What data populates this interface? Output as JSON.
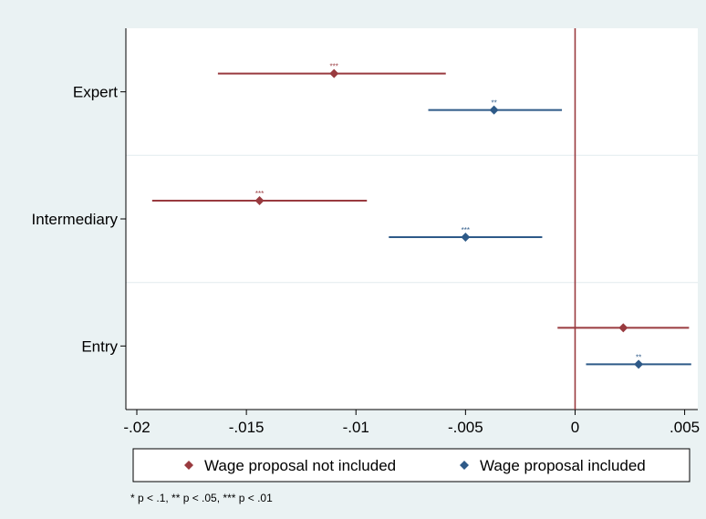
{
  "chart_data": {
    "type": "coefficient-plot",
    "orientation": "horizontal",
    "categories": [
      "Expert",
      "Intermediary",
      "Entry"
    ],
    "xlim": [
      -0.0205,
      0.0056
    ],
    "xticks": [
      -0.02,
      -0.015,
      -0.01,
      -0.005,
      0,
      0.005
    ],
    "xtick_labels": [
      "-.02",
      "-.015",
      "-.01",
      "-.005",
      "0",
      ".005"
    ],
    "reference_line_x": 0,
    "grid": "horizontal separators between categories",
    "legend_position": "bottom",
    "series": [
      {
        "name": "Wage proposal not included",
        "color": "#993a3f",
        "marker": "diamond",
        "points": [
          {
            "category": "Expert",
            "estimate": -0.011,
            "ci": [
              -0.0163,
              -0.0059
            ],
            "sig": "***"
          },
          {
            "category": "Intermediary",
            "estimate": -0.0144,
            "ci": [
              -0.0193,
              -0.0095
            ],
            "sig": "***"
          },
          {
            "category": "Entry",
            "estimate": 0.0022,
            "ci": [
              -0.0008,
              0.0052
            ],
            "sig": ""
          }
        ]
      },
      {
        "name": "Wage proposal included",
        "color": "#2e5a88",
        "marker": "diamond",
        "points": [
          {
            "category": "Expert",
            "estimate": -0.0037,
            "ci": [
              -0.0067,
              -0.0006
            ],
            "sig": "**"
          },
          {
            "category": "Intermediary",
            "estimate": -0.005,
            "ci": [
              -0.0085,
              -0.0015
            ],
            "sig": "***"
          },
          {
            "category": "Entry",
            "estimate": 0.0029,
            "ci": [
              0.0005,
              0.0053
            ],
            "sig": "**"
          }
        ]
      }
    ],
    "note": "* p < .1, ** p < .05, *** p < .01"
  }
}
